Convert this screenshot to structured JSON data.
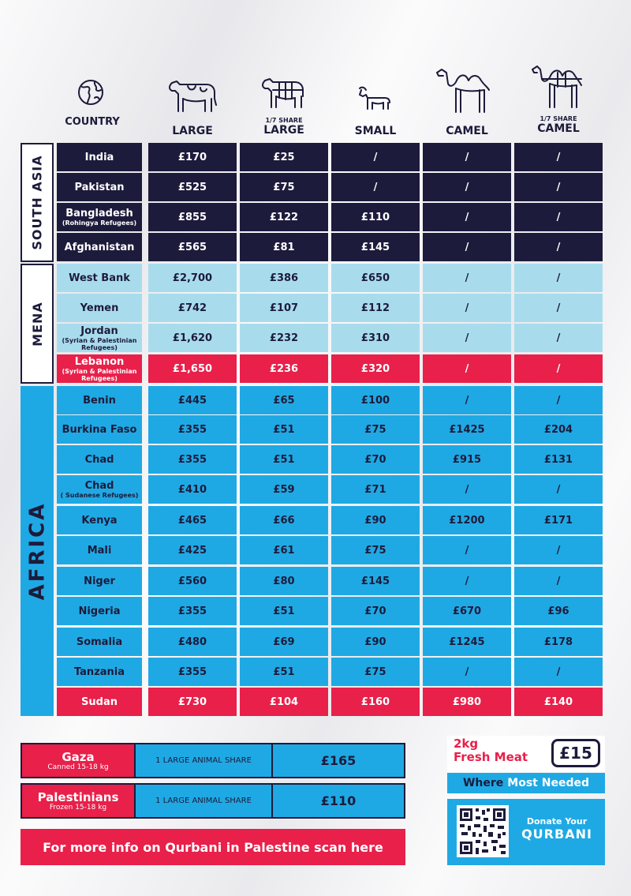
{
  "headers": {
    "country": "COUNTRY",
    "large": "LARGE",
    "share_large_small": "1/7 SHARE",
    "share_large": "LARGE",
    "small": "SMALL",
    "camel": "CAMEL",
    "share_camel_small": "1/7 SHARE",
    "share_camel": "CAMEL"
  },
  "regions": {
    "south_asia": "SOUTH ASIA",
    "mena": "MENA",
    "africa": "AFRICA"
  },
  "rows": [
    {
      "country": "India",
      "sub": "",
      "vals": [
        "£170",
        "£25",
        "/",
        "/",
        "/"
      ]
    },
    {
      "country": "Pakistan",
      "sub": "",
      "vals": [
        "£525",
        "£75",
        "/",
        "/",
        "/"
      ]
    },
    {
      "country": "Bangladesh",
      "sub": "(Rohingya Refugees)",
      "vals": [
        "£855",
        "£122",
        "£110",
        "/",
        "/"
      ]
    },
    {
      "country": "Afghanistan",
      "sub": "",
      "vals": [
        "£565",
        "£81",
        "£145",
        "/",
        "/"
      ]
    },
    {
      "country": "West Bank",
      "sub": "",
      "vals": [
        "£2,700",
        "£386",
        "£650",
        "/",
        "/"
      ]
    },
    {
      "country": "Yemen",
      "sub": "",
      "vals": [
        "£742",
        "£107",
        "£112",
        "/",
        "/"
      ]
    },
    {
      "country": "Jordan",
      "sub": "(Syrian & Palestinian Refugees)",
      "vals": [
        "£1,620",
        "£232",
        "£310",
        "/",
        "/"
      ]
    },
    {
      "country": "Lebanon",
      "sub": "(Syrian & Palestinian Refugees)",
      "vals": [
        "£1,650",
        "£236",
        "£320",
        "/",
        "/"
      ]
    },
    {
      "country": "Benin",
      "sub": "",
      "vals": [
        "£445",
        "£65",
        "£100",
        "/",
        "/"
      ]
    },
    {
      "country": "Burkina Faso",
      "sub": "",
      "vals": [
        "£355",
        "£51",
        "£75",
        "£1425",
        "£204"
      ]
    },
    {
      "country": "Chad",
      "sub": "",
      "vals": [
        "£355",
        "£51",
        "£70",
        "£915",
        "£131"
      ]
    },
    {
      "country": "Chad",
      "sub": "( Sudanese Refugees)",
      "vals": [
        "£410",
        "£59",
        "£71",
        "/",
        "/"
      ]
    },
    {
      "country": "Kenya",
      "sub": "",
      "vals": [
        "£465",
        "£66",
        "£90",
        "£1200",
        "£171"
      ]
    },
    {
      "country": "Mali",
      "sub": "",
      "vals": [
        "£425",
        "£61",
        "£75",
        "/",
        "/"
      ]
    },
    {
      "country": "Niger",
      "sub": "",
      "vals": [
        "£560",
        "£80",
        "£145",
        "/",
        "/"
      ]
    },
    {
      "country": "Nigeria",
      "sub": "",
      "vals": [
        "£355",
        "£51",
        "£70",
        "£670",
        "£96"
      ]
    },
    {
      "country": "Somalia",
      "sub": "",
      "vals": [
        "£480",
        "£69",
        "£90",
        "£1245",
        "£178"
      ]
    },
    {
      "country": "Tanzania",
      "sub": "",
      "vals": [
        "£355",
        "£51",
        "£75",
        "/",
        "/"
      ]
    },
    {
      "country": "Sudan",
      "sub": "",
      "vals": [
        "£730",
        "£104",
        "£160",
        "£980",
        "£140"
      ]
    }
  ],
  "bottom": {
    "gaza": {
      "name": "Gaza",
      "sub": "Canned 15-18 kg",
      "desc": "1 LARGE ANIMAL SHARE",
      "price": "£165"
    },
    "pal": {
      "name": "Palestinians",
      "sub": "Frozen 15-18 kg",
      "desc": "1 LARGE ANIMAL SHARE",
      "price": "£110"
    },
    "banner": "For more info on Qurbani in Palestine scan here"
  },
  "promo": {
    "line1": "2kg",
    "line2": "Fresh Meat",
    "price": "£15",
    "where": "Where",
    "most_needed": "Most Needed",
    "donate": "Donate Your",
    "qurbani": "QURBANI"
  },
  "colors": {
    "navy": "#1d1b3b",
    "light_blue": "#a8dced",
    "blue": "#1fa9e4",
    "red": "#e8204a"
  }
}
